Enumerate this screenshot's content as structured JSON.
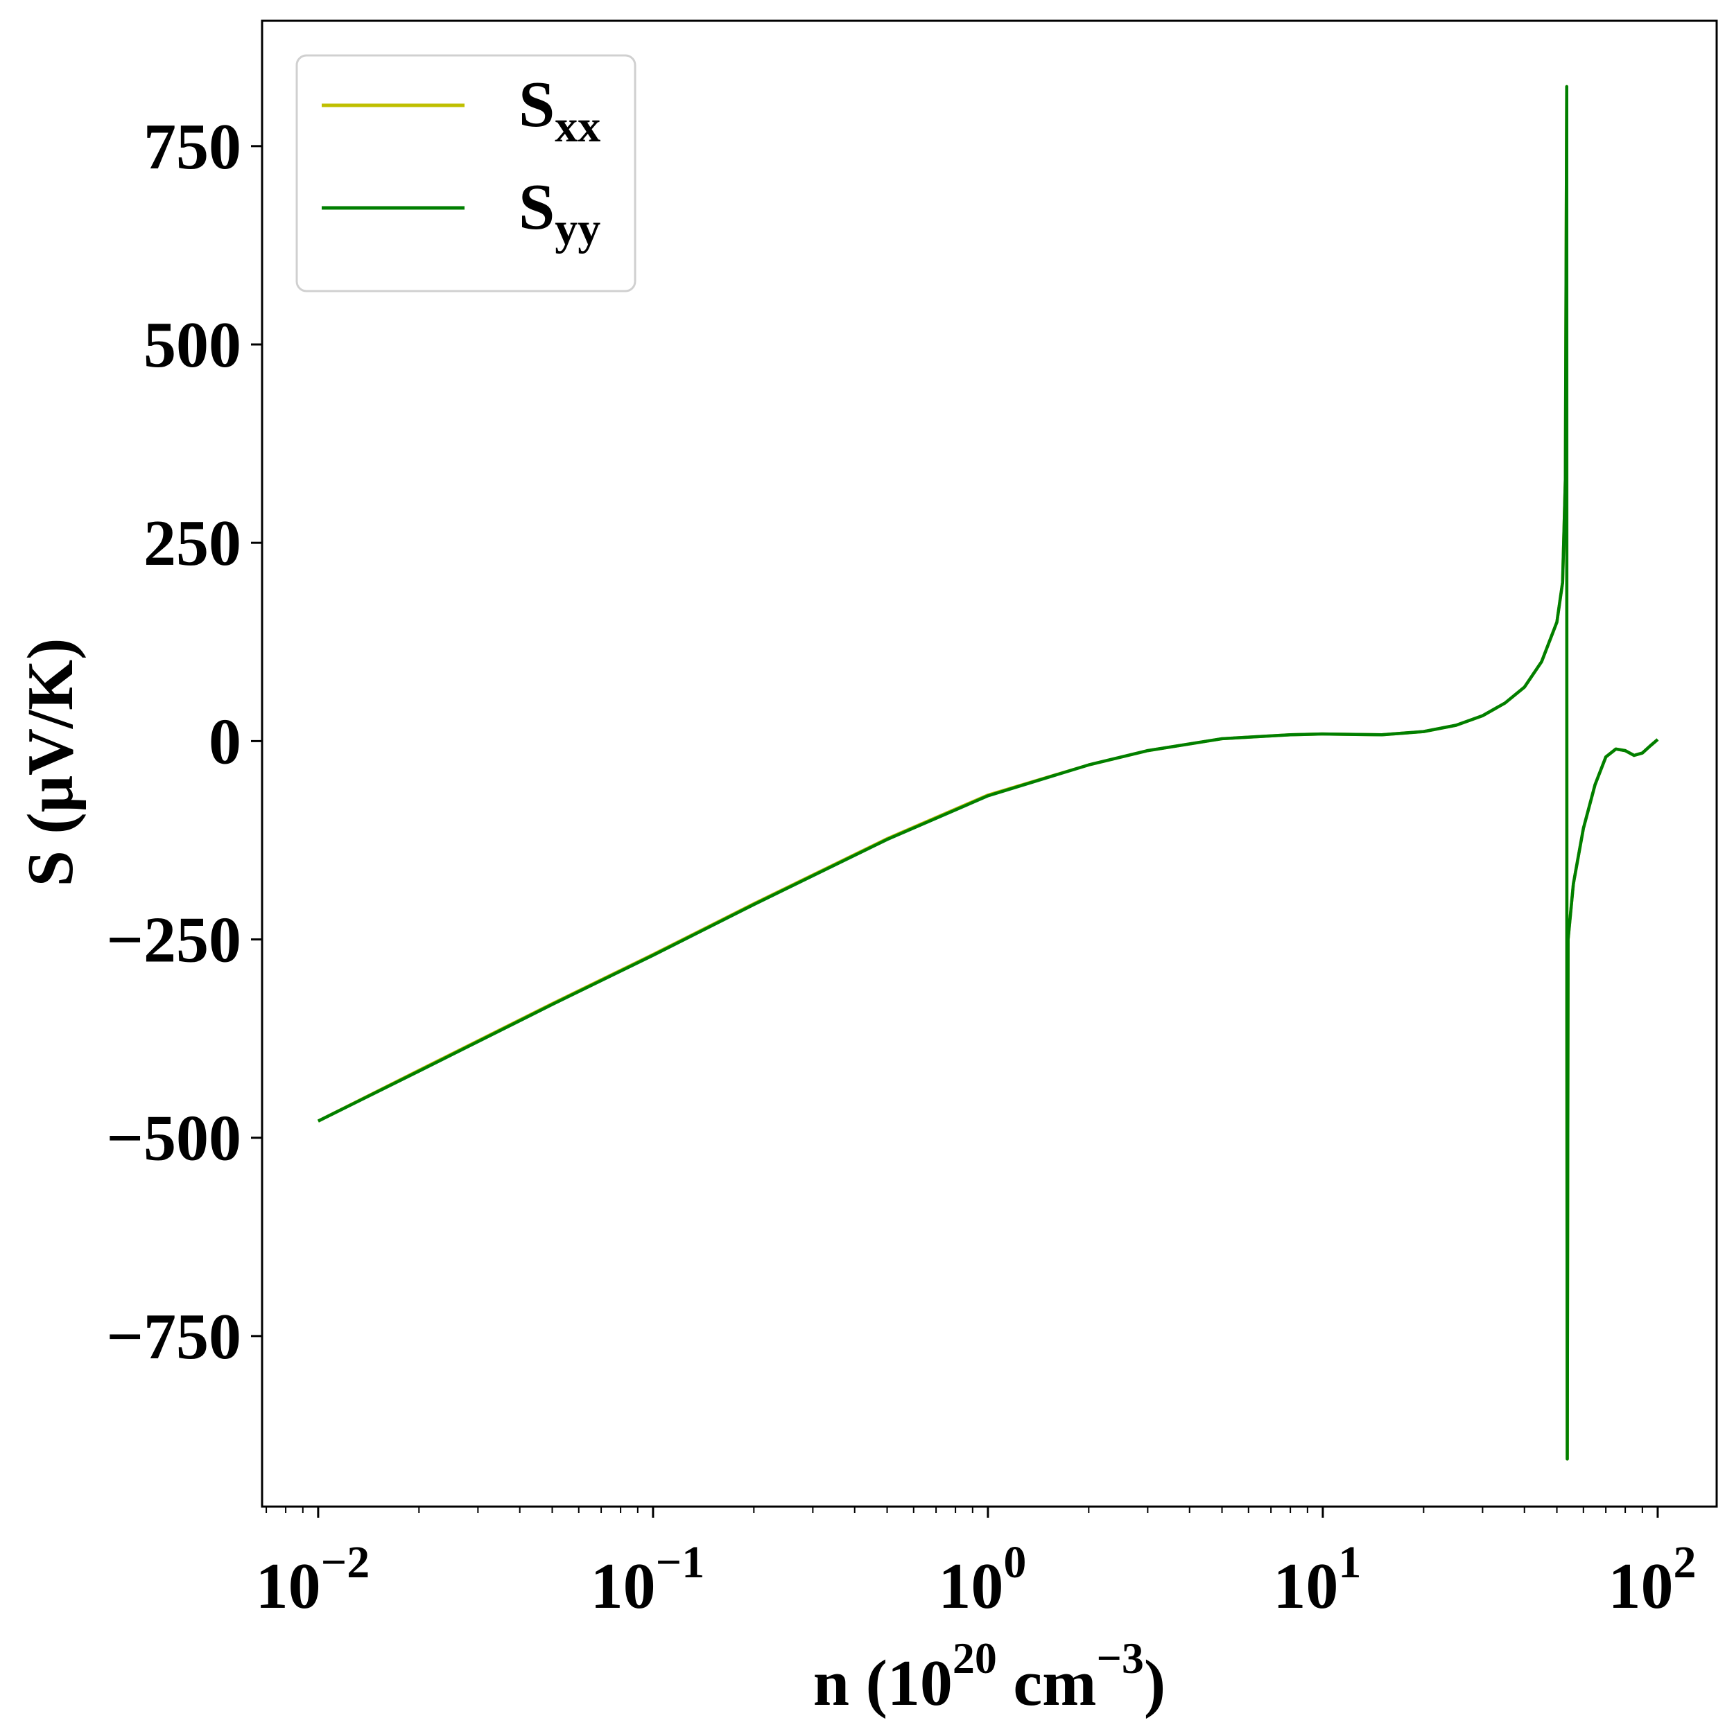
{
  "chart_data": {
    "type": "line",
    "xscale": "log",
    "xlim": [
      0.0068,
      150
    ],
    "ylim": [
      -965,
      908
    ],
    "xlabel": {
      "base": "n (10",
      "sup1": "20",
      "mid": " cm",
      "sup2": "−3",
      "end": ")"
    },
    "ylabel": "S (μV/K)",
    "xticks": [
      {
        "value": 0.01,
        "base": "10",
        "exp": "−2"
      },
      {
        "value": 0.1,
        "base": "10",
        "exp": "−1"
      },
      {
        "value": 1,
        "base": "10",
        "exp": "0"
      },
      {
        "value": 10,
        "base": "10",
        "exp": "1"
      },
      {
        "value": 100,
        "base": "10",
        "exp": "2"
      }
    ],
    "yticks": [
      {
        "value": 750,
        "label": "750"
      },
      {
        "value": 500,
        "label": "500"
      },
      {
        "value": 250,
        "label": "250"
      },
      {
        "value": 0,
        "label": "0"
      },
      {
        "value": -250,
        "label": "−250"
      },
      {
        "value": -500,
        "label": "−500"
      },
      {
        "value": -750,
        "label": "−750"
      }
    ],
    "grid": false,
    "legend": {
      "position": "top-left"
    },
    "series": [
      {
        "name": "S",
        "subscript": "xx",
        "color": "#bfbf00",
        "points": [
          [
            0.01,
            -479
          ],
          [
            0.02,
            -415
          ],
          [
            0.05,
            -331
          ],
          [
            0.1,
            -269
          ],
          [
            0.2,
            -205
          ],
          [
            0.5,
            -123
          ],
          [
            1,
            -68
          ],
          [
            2,
            -30
          ],
          [
            3,
            -12
          ],
          [
            5,
            3
          ],
          [
            8,
            8
          ],
          [
            10,
            9
          ],
          [
            15,
            8
          ],
          [
            20,
            12
          ],
          [
            25,
            20
          ],
          [
            30,
            32
          ],
          [
            35,
            48
          ],
          [
            40,
            68
          ],
          [
            45,
            100
          ],
          [
            50,
            150
          ],
          [
            52,
            200
          ],
          [
            53,
            330
          ],
          [
            53.5,
            825
          ],
          [
            53.55,
            -350
          ],
          [
            53.7,
            -905
          ],
          [
            54,
            -250
          ],
          [
            56,
            -180
          ],
          [
            60,
            -110
          ],
          [
            65,
            -55
          ],
          [
            70,
            -20
          ],
          [
            75,
            -10
          ],
          [
            80,
            -12
          ],
          [
            85,
            -18
          ],
          [
            90,
            -15
          ],
          [
            95,
            -6
          ],
          [
            100,
            2
          ]
        ]
      },
      {
        "name": "S",
        "subscript": "yy",
        "color": "#007f00",
        "points": [
          [
            0.01,
            -479
          ],
          [
            0.02,
            -416
          ],
          [
            0.05,
            -332
          ],
          [
            0.1,
            -270
          ],
          [
            0.2,
            -206
          ],
          [
            0.5,
            -124
          ],
          [
            1,
            -69
          ],
          [
            2,
            -30
          ],
          [
            3,
            -12
          ],
          [
            5,
            3
          ],
          [
            8,
            8
          ],
          [
            10,
            9
          ],
          [
            15,
            8
          ],
          [
            20,
            12
          ],
          [
            25,
            20
          ],
          [
            30,
            32
          ],
          [
            35,
            48
          ],
          [
            40,
            68
          ],
          [
            45,
            100
          ],
          [
            50,
            150
          ],
          [
            52,
            200
          ],
          [
            53,
            330
          ],
          [
            53.5,
            825
          ],
          [
            53.55,
            -350
          ],
          [
            53.7,
            -905
          ],
          [
            54,
            -250
          ],
          [
            56,
            -180
          ],
          [
            60,
            -110
          ],
          [
            65,
            -55
          ],
          [
            70,
            -20
          ],
          [
            75,
            -10
          ],
          [
            80,
            -12
          ],
          [
            85,
            -18
          ],
          [
            90,
            -15
          ],
          [
            95,
            -6
          ],
          [
            100,
            2
          ]
        ]
      }
    ]
  }
}
